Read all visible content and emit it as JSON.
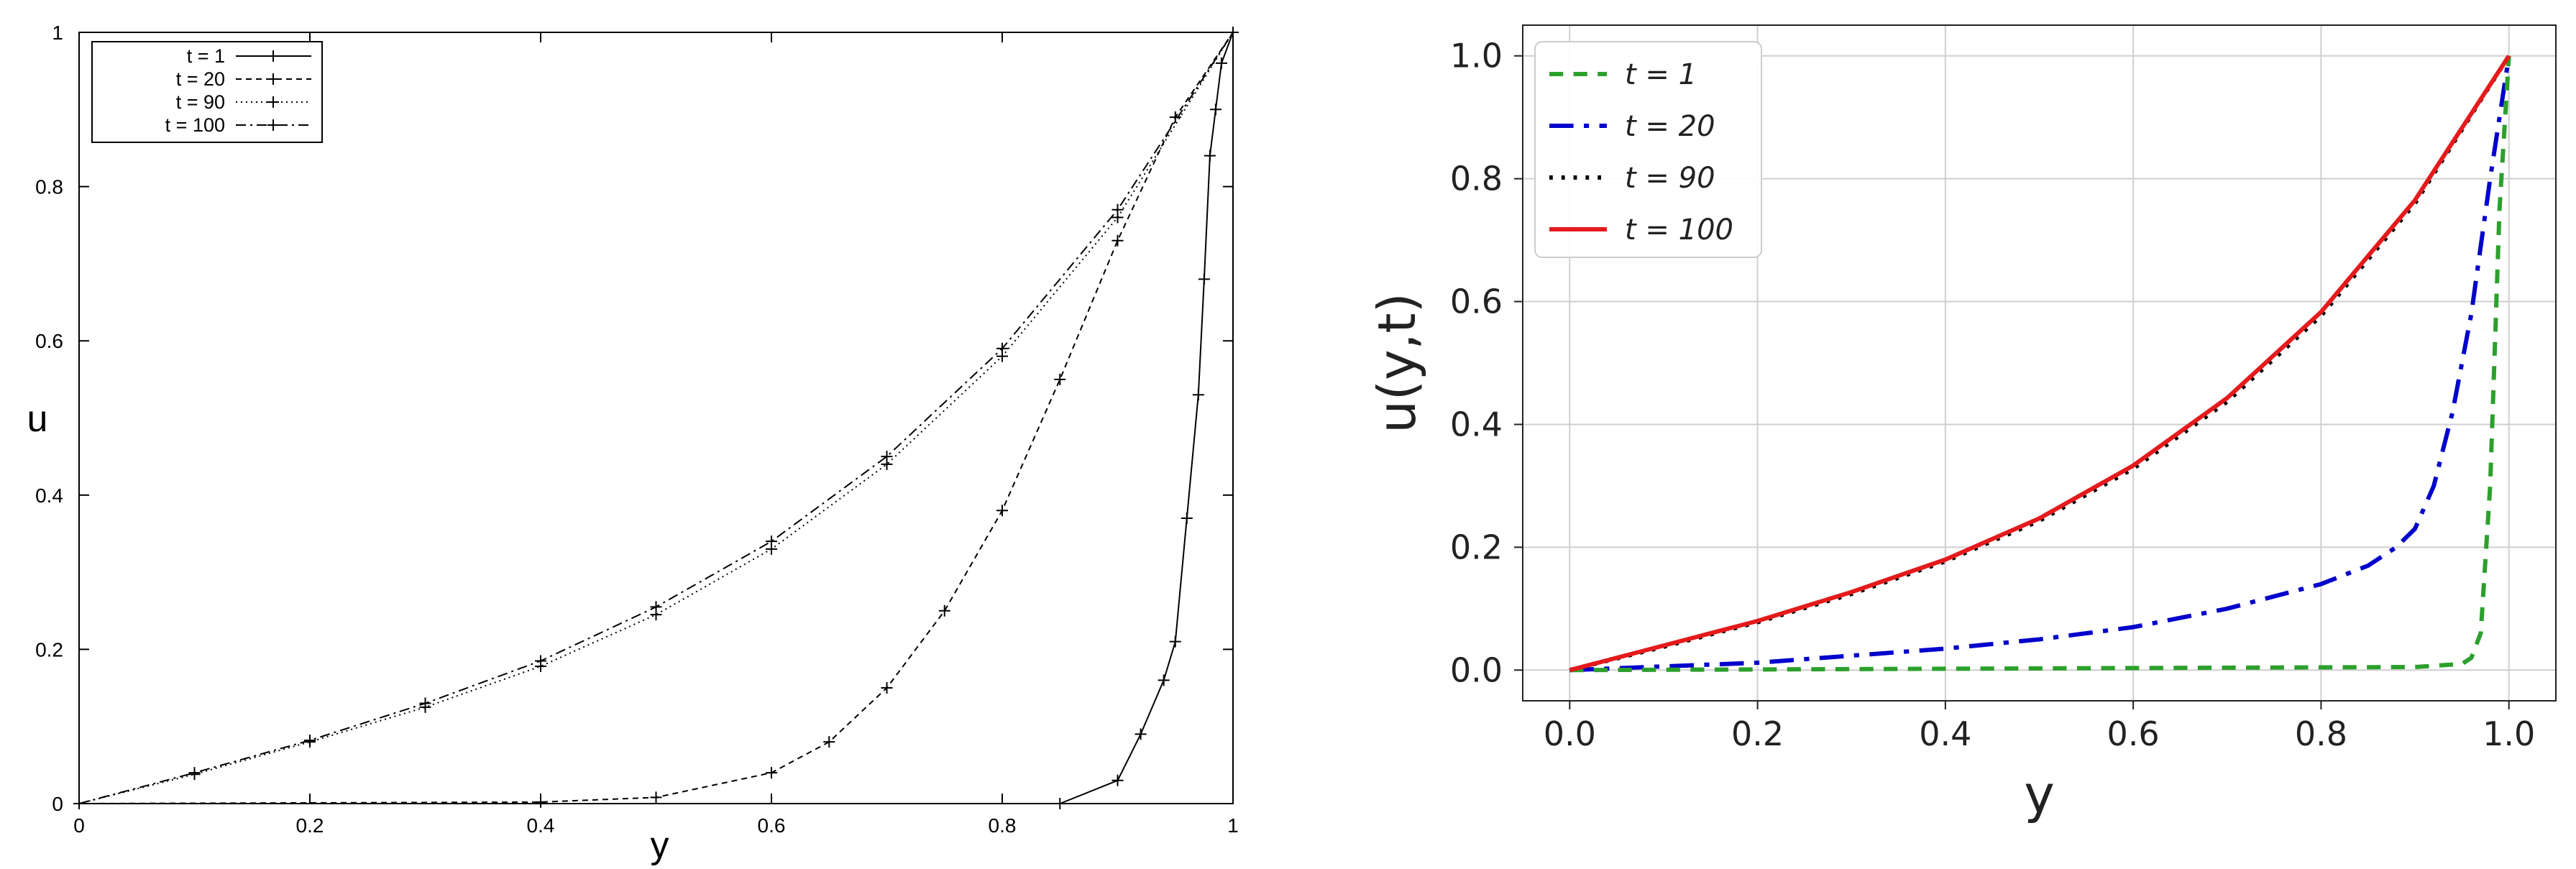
{
  "chart_data": [
    {
      "type": "line",
      "title": "",
      "xlabel": "y",
      "ylabel": "u",
      "xlim": [
        0,
        1
      ],
      "ylim": [
        0,
        1
      ],
      "x_ticks": [
        "0",
        "0.2",
        "0.4",
        "0.6",
        "0.8",
        "1"
      ],
      "y_ticks": [
        "0",
        "0.2",
        "0.4",
        "0.6",
        "0.8",
        "1"
      ],
      "grid": false,
      "legend_position": "top-left",
      "marker": "+",
      "series": [
        {
          "name": "t = 1",
          "style": "solid",
          "x": [
            0,
            0.85,
            0.9,
            0.92,
            0.94,
            0.95,
            0.96,
            0.97,
            0.975,
            0.98,
            0.985,
            0.99,
            1
          ],
          "y": [
            0,
            0,
            0.03,
            0.09,
            0.16,
            0.21,
            0.37,
            0.53,
            0.68,
            0.84,
            0.9,
            0.96,
            1
          ]
        },
        {
          "name": "t = 20",
          "style": "dashed",
          "x": [
            0,
            0.4,
            0.5,
            0.6,
            0.65,
            0.7,
            0.75,
            0.8,
            0.85,
            0.9,
            0.95,
            1
          ],
          "y": [
            0,
            0.002,
            0.008,
            0.04,
            0.08,
            0.15,
            0.25,
            0.38,
            0.55,
            0.73,
            0.89,
            1
          ]
        },
        {
          "name": "t = 90",
          "style": "dotted",
          "x": [
            0,
            0.1,
            0.2,
            0.3,
            0.4,
            0.5,
            0.6,
            0.7,
            0.8,
            0.9,
            1
          ],
          "y": [
            0,
            0.038,
            0.08,
            0.125,
            0.178,
            0.245,
            0.33,
            0.44,
            0.58,
            0.76,
            1
          ]
        },
        {
          "name": "t = 100",
          "style": "dashdot",
          "x": [
            0,
            0.1,
            0.2,
            0.3,
            0.4,
            0.5,
            0.6,
            0.7,
            0.8,
            0.9,
            1
          ],
          "y": [
            0,
            0.04,
            0.082,
            0.13,
            0.185,
            0.255,
            0.34,
            0.45,
            0.59,
            0.77,
            1
          ]
        }
      ]
    },
    {
      "type": "line",
      "title": "",
      "xlabel": "y",
      "ylabel": "u(y,t)",
      "xlim": [
        -0.05,
        1.05
      ],
      "ylim": [
        -0.05,
        1.05
      ],
      "x_ticks": [
        "0.0",
        "0.2",
        "0.4",
        "0.6",
        "0.8",
        "1.0"
      ],
      "y_ticks": [
        "0.0",
        "0.2",
        "0.4",
        "0.6",
        "0.8",
        "1.0"
      ],
      "grid": true,
      "legend_position": "top-left",
      "series": [
        {
          "name": "t = 1",
          "color": "#2ca02c",
          "style": "dashed",
          "x": [
            0,
            0.9,
            0.95,
            0.96,
            0.97,
            0.98,
            0.99,
            1
          ],
          "y": [
            0,
            0.005,
            0.01,
            0.02,
            0.06,
            0.3,
            0.75,
            1
          ]
        },
        {
          "name": "t = 20",
          "color": "#0000cc",
          "style": "dashdot",
          "x": [
            0,
            0.2,
            0.4,
            0.5,
            0.6,
            0.7,
            0.75,
            0.8,
            0.85,
            0.88,
            0.9,
            0.92,
            0.94,
            0.96,
            0.98,
            1
          ],
          "y": [
            0,
            0.012,
            0.035,
            0.05,
            0.07,
            0.1,
            0.12,
            0.14,
            0.17,
            0.2,
            0.23,
            0.3,
            0.42,
            0.58,
            0.8,
            1
          ]
        },
        {
          "name": "t = 90",
          "color": "#000000",
          "style": "dotted",
          "x": [
            0,
            0.1,
            0.2,
            0.3,
            0.4,
            0.5,
            0.6,
            0.7,
            0.8,
            0.9,
            1
          ],
          "y": [
            0,
            0.038,
            0.078,
            0.124,
            0.177,
            0.243,
            0.328,
            0.437,
            0.577,
            0.76,
            1
          ]
        },
        {
          "name": "t = 100",
          "color": "#e41a1c",
          "style": "solid",
          "x": [
            0,
            0.1,
            0.2,
            0.3,
            0.4,
            0.5,
            0.6,
            0.7,
            0.8,
            0.9,
            1
          ],
          "y": [
            0,
            0.04,
            0.08,
            0.127,
            0.18,
            0.247,
            0.333,
            0.443,
            0.583,
            0.765,
            1
          ]
        }
      ]
    }
  ]
}
